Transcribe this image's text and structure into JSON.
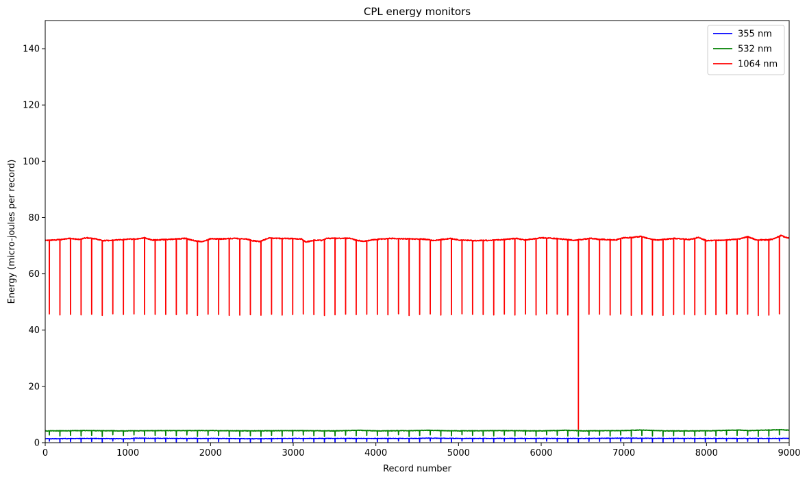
{
  "chart_data": {
    "type": "line",
    "title": "CPL energy monitors",
    "xlabel": "Record number",
    "ylabel": "Energy (micro-joules per record)",
    "xlim": [
      0,
      9000
    ],
    "ylim": [
      0,
      150
    ],
    "xticks": [
      0,
      1000,
      2000,
      3000,
      4000,
      5000,
      6000,
      7000,
      8000,
      9000
    ],
    "yticks": [
      0,
      20,
      40,
      60,
      80,
      100,
      120,
      140
    ],
    "grid": false,
    "legend_position": "top-right",
    "dropout_period": 128,
    "dropout_first": 50,
    "series": [
      {
        "name": "355 nm",
        "color": "#0000ff",
        "baseline": {
          "x": [
            0,
            500,
            1000,
            1100,
            1500,
            2000,
            2500,
            3000,
            3500,
            4000,
            4500,
            4600,
            5000,
            5500,
            6000,
            6500,
            7000,
            7500,
            8000,
            8500,
            9000
          ],
          "y": [
            1.4,
            1.5,
            1.4,
            1.6,
            1.5,
            1.5,
            1.4,
            1.5,
            1.5,
            1.5,
            1.5,
            1.6,
            1.5,
            1.5,
            1.5,
            1.5,
            1.6,
            1.5,
            1.5,
            1.5,
            1.5
          ]
        },
        "dropout_value": 0.3,
        "deep_dropout": null
      },
      {
        "name": "532 nm",
        "color": "#008000",
        "baseline": {
          "x": [
            0,
            500,
            1000,
            1500,
            2000,
            2500,
            3000,
            3500,
            3800,
            4000,
            4500,
            4600,
            5000,
            5500,
            6000,
            6300,
            6500,
            7000,
            7200,
            7500,
            8000,
            8400,
            8500,
            8900,
            9000
          ],
          "y": [
            4.2,
            4.3,
            4.2,
            4.3,
            4.3,
            4.2,
            4.3,
            4.2,
            4.4,
            4.2,
            4.3,
            4.4,
            4.2,
            4.3,
            4.2,
            4.4,
            4.2,
            4.3,
            4.5,
            4.2,
            4.2,
            4.5,
            4.3,
            4.6,
            4.4
          ]
        },
        "dropout_value": 2.5,
        "deep_dropout": null
      },
      {
        "name": "1064 nm",
        "color": "#ff0000",
        "baseline": {
          "x": [
            0,
            200,
            300,
            400,
            500,
            600,
            700,
            800,
            1000,
            1100,
            1200,
            1300,
            1400,
            1600,
            1700,
            1800,
            1900,
            2000,
            2100,
            2300,
            2450,
            2500,
            2600,
            2700,
            2800,
            3000,
            3100,
            3150,
            3250,
            3350,
            3400,
            3700,
            3750,
            3850,
            3950,
            4000,
            4200,
            4300,
            4600,
            4700,
            4900,
            5000,
            5200,
            5400,
            5600,
            5700,
            5800,
            5900,
            6000,
            6200,
            6400,
            6600,
            6700,
            6900,
            7000,
            7100,
            7200,
            7300,
            7400,
            7600,
            7800,
            7900,
            8000,
            8200,
            8400,
            8500,
            8600,
            8700,
            8800,
            8900,
            9000
          ],
          "y": [
            71.8,
            72.2,
            72.6,
            72.2,
            72.8,
            72.5,
            71.8,
            71.9,
            72.3,
            72.4,
            72.8,
            72.0,
            72.1,
            72.4,
            72.6,
            71.8,
            71.4,
            72.5,
            72.4,
            72.6,
            72.3,
            71.8,
            71.5,
            72.7,
            72.6,
            72.5,
            72.4,
            71.3,
            71.9,
            71.9,
            72.6,
            72.6,
            72.0,
            71.6,
            72.0,
            72.2,
            72.6,
            72.5,
            72.3,
            71.8,
            72.6,
            72.0,
            71.8,
            71.9,
            72.3,
            72.6,
            72.0,
            72.4,
            72.8,
            72.5,
            71.9,
            72.6,
            72.3,
            72.0,
            72.8,
            72.9,
            73.3,
            72.5,
            72.0,
            72.6,
            72.2,
            72.9,
            71.8,
            71.9,
            72.4,
            73.2,
            72.1,
            72.0,
            72.3,
            73.6,
            72.6
          ]
        },
        "dropout_value": 45.5,
        "deep_dropout": {
          "x": 6420,
          "value": 5
        }
      }
    ]
  }
}
